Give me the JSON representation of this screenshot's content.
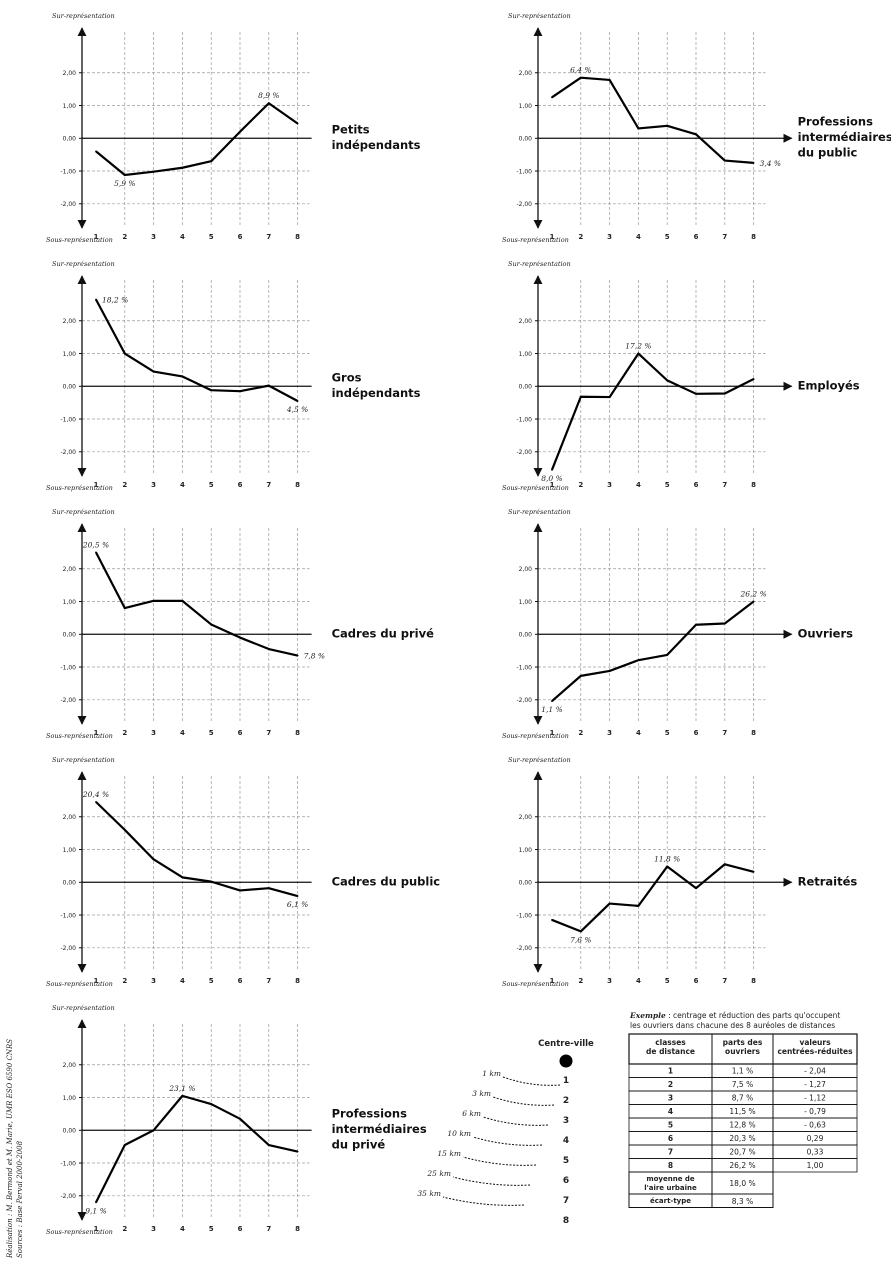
{
  "axis_common": {
    "top_label": "Sur-représentation",
    "bottom_label": "Sous-représentation",
    "x_ticks": [
      "1",
      "2",
      "3",
      "4",
      "5",
      "6",
      "7",
      "8"
    ],
    "y_ticks": [
      "2,00",
      "1,00",
      "0,00",
      "-1,00",
      "-2,00"
    ]
  },
  "chart_data": [
    {
      "type": "line",
      "title_lines": [
        "Petits",
        "indépendants"
      ],
      "x": [
        1,
        2,
        3,
        4,
        5,
        6,
        7,
        8
      ],
      "ylim": [
        -2.8,
        3.0
      ],
      "series": [
        {
          "values": [
            -0.4,
            -1.12,
            -1.02,
            -0.9,
            -0.7,
            0.2,
            1.07,
            0.45
          ]
        }
      ],
      "annotations": [
        {
          "index": 1,
          "text": "5,9 %",
          "pos": "below"
        },
        {
          "index": 6,
          "text": "8,9 %",
          "pos": "above"
        }
      ]
    },
    {
      "type": "line",
      "title_lines": [
        "Professions",
        "intermédiaires",
        "du public"
      ],
      "x": [
        1,
        2,
        3,
        4,
        5,
        6,
        7,
        8
      ],
      "ylim": [
        -2.8,
        3.0
      ],
      "series": [
        {
          "values": [
            1.25,
            1.85,
            1.78,
            0.3,
            0.38,
            0.12,
            -0.68,
            -0.75
          ]
        }
      ],
      "annotations": [
        {
          "index": 1,
          "text": "6,4 %",
          "pos": "above"
        },
        {
          "index": 7,
          "text": "3,4 %",
          "pos": "right"
        }
      ]
    },
    {
      "type": "line",
      "title_lines": [
        "Gros",
        "indépendants"
      ],
      "x": [
        1,
        2,
        3,
        4,
        5,
        6,
        7,
        8
      ],
      "ylim": [
        -2.8,
        3.0
      ],
      "series": [
        {
          "values": [
            2.65,
            1.0,
            0.45,
            0.3,
            -0.12,
            -0.15,
            0.02,
            -0.45
          ]
        }
      ],
      "annotations": [
        {
          "index": 0,
          "text": "18,2 %",
          "pos": "right"
        },
        {
          "index": 7,
          "text": "4,5 %",
          "pos": "below"
        }
      ]
    },
    {
      "type": "line",
      "title_lines": [
        "Employés"
      ],
      "x": [
        1,
        2,
        3,
        4,
        5,
        6,
        7,
        8
      ],
      "ylim": [
        -2.8,
        3.0
      ],
      "series": [
        {
          "values": [
            -2.55,
            -0.32,
            -0.33,
            1.0,
            0.18,
            -0.23,
            -0.22,
            0.22
          ]
        }
      ],
      "annotations": [
        {
          "index": 0,
          "text": "8,0 %",
          "pos": "below"
        },
        {
          "index": 3,
          "text": "17,2 %",
          "pos": "above"
        }
      ]
    },
    {
      "type": "line",
      "title_lines": [
        "Cadres du privé"
      ],
      "x": [
        1,
        2,
        3,
        4,
        5,
        6,
        7,
        8
      ],
      "ylim": [
        -2.8,
        3.0
      ],
      "series": [
        {
          "values": [
            2.5,
            0.8,
            1.02,
            1.02,
            0.3,
            -0.1,
            -0.45,
            -0.65
          ]
        }
      ],
      "annotations": [
        {
          "index": 0,
          "text": "20,5 %",
          "pos": "above"
        },
        {
          "index": 7,
          "text": "7,8 %",
          "pos": "right"
        }
      ]
    },
    {
      "type": "line",
      "title_lines": [
        "Ouvriers"
      ],
      "x": [
        1,
        2,
        3,
        4,
        5,
        6,
        7,
        8
      ],
      "ylim": [
        -2.8,
        3.0
      ],
      "series": [
        {
          "values": [
            -2.04,
            -1.27,
            -1.12,
            -0.79,
            -0.63,
            0.29,
            0.33,
            1.0
          ]
        }
      ],
      "annotations": [
        {
          "index": 0,
          "text": "1,1 %",
          "pos": "below"
        },
        {
          "index": 7,
          "text": "26,2 %",
          "pos": "above"
        }
      ]
    },
    {
      "type": "line",
      "title_lines": [
        "Cadres du public"
      ],
      "x": [
        1,
        2,
        3,
        4,
        5,
        6,
        7,
        8
      ],
      "ylim": [
        -2.8,
        3.0
      ],
      "series": [
        {
          "values": [
            2.45,
            1.6,
            0.7,
            0.15,
            0.02,
            -0.25,
            -0.18,
            -0.42
          ]
        }
      ],
      "annotations": [
        {
          "index": 0,
          "text": "20,4 %",
          "pos": "above"
        },
        {
          "index": 7,
          "text": "6,1 %",
          "pos": "below"
        }
      ]
    },
    {
      "type": "line",
      "title_lines": [
        "Retraités"
      ],
      "x": [
        1,
        2,
        3,
        4,
        5,
        6,
        7,
        8
      ],
      "ylim": [
        -2.8,
        3.0
      ],
      "series": [
        {
          "values": [
            -1.15,
            -1.5,
            -0.65,
            -0.72,
            0.48,
            -0.18,
            0.55,
            0.32
          ]
        }
      ],
      "annotations": [
        {
          "index": 1,
          "text": "7,6 %",
          "pos": "below"
        },
        {
          "index": 4,
          "text": "11,8 %",
          "pos": "above"
        }
      ]
    },
    {
      "type": "line",
      "title_lines": [
        "Professions",
        "intermédiaires",
        "du privé"
      ],
      "x": [
        1,
        2,
        3,
        4,
        5,
        6,
        7,
        8
      ],
      "ylim": [
        -2.8,
        3.0
      ],
      "series": [
        {
          "values": [
            -2.2,
            -0.45,
            0.0,
            1.05,
            0.8,
            0.35,
            -0.45,
            -0.65
          ]
        }
      ],
      "annotations": [
        {
          "index": 0,
          "text": "9,1 %",
          "pos": "below"
        },
        {
          "index": 3,
          "text": "23,1 %",
          "pos": "above"
        }
      ]
    }
  ],
  "credits": {
    "line1": "Réalisation : M. Bermond et M. Marie, UMR ESO 6590 CNRS",
    "line2": "Sources : Base Perval 2000-2008"
  },
  "distance_diagram": {
    "title": "Centre-ville",
    "classes": [
      "1",
      "2",
      "3",
      "4",
      "5",
      "6",
      "7",
      "8"
    ],
    "distances": [
      "1 km",
      "3 km",
      "6 km",
      "10 km",
      "15 km",
      "25 km",
      "35 km"
    ]
  },
  "example_table": {
    "caption_bold": "Exemple",
    "caption_line1": " : centrage et réduction des parts qu'occupent",
    "caption_line2": "les ouvriers dans chacune des 8 auréoles de distances",
    "headers": [
      [
        "classes",
        "de distance"
      ],
      [
        "parts des",
        "ouvriers"
      ],
      [
        "valeurs",
        "centrées-réduites"
      ]
    ],
    "rows": [
      [
        "1",
        "1,1 %",
        "- 2,04"
      ],
      [
        "2",
        "7,5 %",
        "- 1,27"
      ],
      [
        "3",
        "8,7 %",
        "- 1,12"
      ],
      [
        "4",
        "11,5 %",
        "- 0,79"
      ],
      [
        "5",
        "12,8 %",
        "- 0,63"
      ],
      [
        "6",
        "20,3 %",
        "0,29"
      ],
      [
        "7",
        "20,7 %",
        "0,33"
      ],
      [
        "8",
        "26,2 %",
        "1,00"
      ]
    ],
    "footer_rows": [
      {
        "label": [
          "moyenne de",
          "l'aire urbaine"
        ],
        "value": "18,0 %"
      },
      {
        "label": [
          "écart-type"
        ],
        "value": "8,3 %"
      }
    ]
  }
}
